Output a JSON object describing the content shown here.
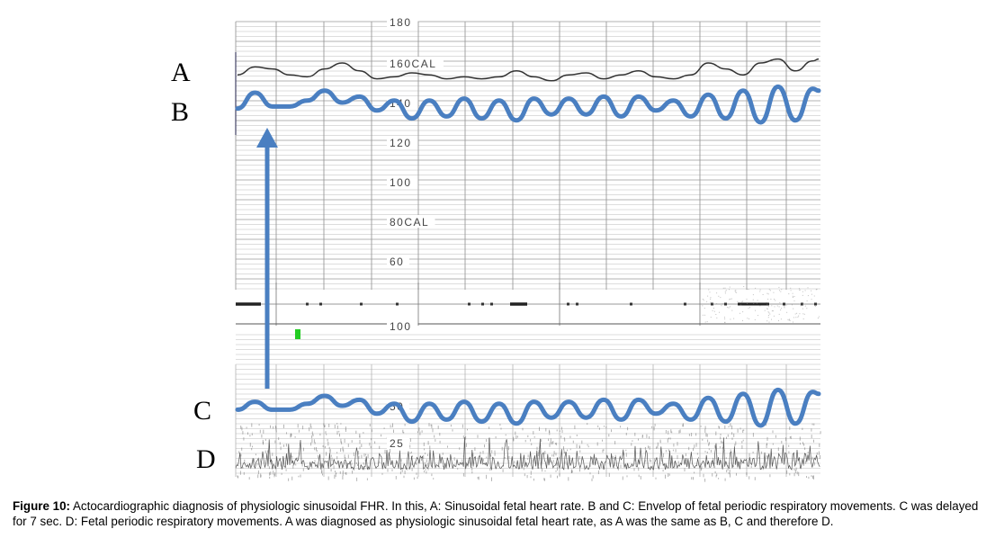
{
  "caption": {
    "label": "Figure 10:",
    "text": " Actocardiographic diagnosis of physiologic sinusoidal FHR. In this, A: Sinusoidal fetal heart rate. B and C: Envelop of fetal periodic respiratory movements. C was delayed for 7 sec. D: Fetal periodic respiratory movements. A was diagnosed as physiologic sinusoidal fetal heart rate, as A was the same as B, C and therefore D."
  },
  "colors": {
    "envelope": "#4a7fc1",
    "arrow": "#4a7fc1",
    "trace": "#333333",
    "grid": "#b3b3b3",
    "marker": "#22cc22"
  },
  "trace_labels": [
    "A",
    "B",
    "C",
    "D"
  ],
  "chart_data": {
    "type": "line",
    "upper_scale_labels": [
      "180",
      "160CAL",
      "140",
      "120",
      "100",
      "80CAL",
      "60"
    ],
    "lower_scale_labels": [
      "100",
      "50",
      "25"
    ],
    "y_upper": [
      60,
      180
    ],
    "series": [
      {
        "name": "A",
        "x": [
          0,
          3,
          6,
          9,
          12,
          15,
          18,
          21,
          24,
          27,
          30,
          33,
          36,
          39,
          42,
          45,
          48,
          51,
          54,
          57,
          60,
          63,
          66,
          69,
          72,
          75,
          78,
          81,
          84,
          87,
          90,
          93,
          96,
          99,
          100
        ],
        "y": [
          154,
          158,
          157,
          154,
          153,
          157,
          160,
          156,
          152,
          153,
          155,
          154,
          152,
          153,
          152,
          153,
          156,
          153,
          151,
          154,
          155,
          152,
          154,
          156,
          153,
          152,
          154,
          160,
          157,
          154,
          160,
          162,
          156,
          161,
          162
        ]
      },
      {
        "name": "B",
        "x": [
          0,
          3,
          6,
          9,
          12,
          15,
          18,
          21,
          24,
          27,
          30,
          33,
          36,
          39,
          42,
          45,
          48,
          51,
          54,
          57,
          60,
          63,
          66,
          69,
          72,
          75,
          78,
          81,
          84,
          87,
          90,
          93,
          96,
          99,
          100
        ],
        "y": [
          137,
          145,
          138,
          138,
          141,
          146,
          140,
          143,
          136,
          141,
          132,
          141,
          133,
          142,
          132,
          141,
          131,
          142,
          134,
          142,
          134,
          143,
          133,
          143,
          136,
          141,
          133,
          144,
          132,
          146,
          130,
          148,
          131,
          147,
          146
        ]
      },
      {
        "name": "C",
        "x": [
          0,
          3,
          6,
          9,
          12,
          15,
          18,
          21,
          24,
          27,
          30,
          33,
          36,
          39,
          42,
          45,
          48,
          51,
          54,
          57,
          60,
          63,
          66,
          69,
          72,
          75,
          78,
          81,
          84,
          87,
          90,
          93,
          96,
          99,
          100
        ],
        "y": [
          48,
          52,
          48,
          48,
          51,
          55,
          50,
          53,
          46,
          51,
          42,
          51,
          43,
          52,
          42,
          51,
          41,
          52,
          44,
          52,
          44,
          53,
          43,
          53,
          46,
          51,
          43,
          54,
          42,
          56,
          40,
          58,
          41,
          57,
          56
        ]
      }
    ]
  }
}
